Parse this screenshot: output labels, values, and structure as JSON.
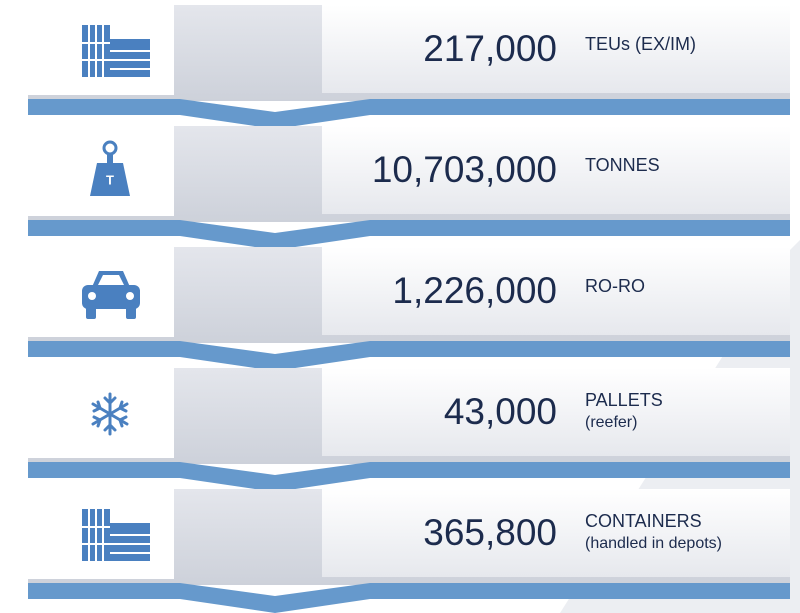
{
  "items": [
    {
      "value": "217,000",
      "unit": [
        "TEUs (EX/IM)"
      ]
    },
    {
      "value": "10,703,000",
      "unit": [
        "TONNES"
      ]
    },
    {
      "value": "1,226,000",
      "unit": [
        "RO-RO"
      ]
    },
    {
      "value": "43,000",
      "unit": [
        "PALLETS",
        "(reefer)"
      ]
    },
    {
      "value": "365,800",
      "unit": [
        "CONTAINERS",
        "(handled in depots)"
      ]
    }
  ],
  "weight_label": "T"
}
